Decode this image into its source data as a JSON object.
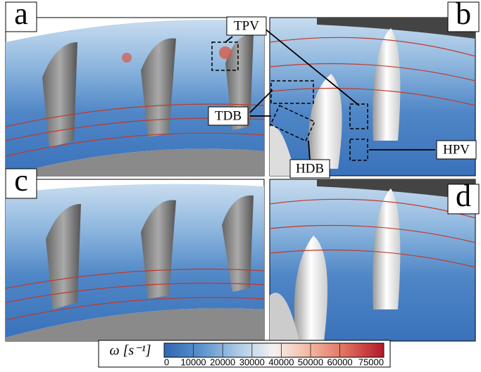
{
  "panels": [
    {
      "label": "a"
    },
    {
      "label": "b"
    },
    {
      "label": "c"
    },
    {
      "label": "d"
    }
  ],
  "annotations": [
    "TPV",
    "TDB",
    "HDB",
    "HPV"
  ],
  "colorbar": {
    "label": "ω [s⁻¹]",
    "lim": [
      0,
      75000
    ],
    "ticks": [
      0,
      10000,
      20000,
      30000,
      40000,
      50000,
      60000,
      75000
    ],
    "colors": [
      "#2f66b0",
      "#5b92cc",
      "#a9c9e6",
      "#f5f3f1",
      "#f2b5a0",
      "#de6b5a",
      "#b2182b"
    ]
  }
}
